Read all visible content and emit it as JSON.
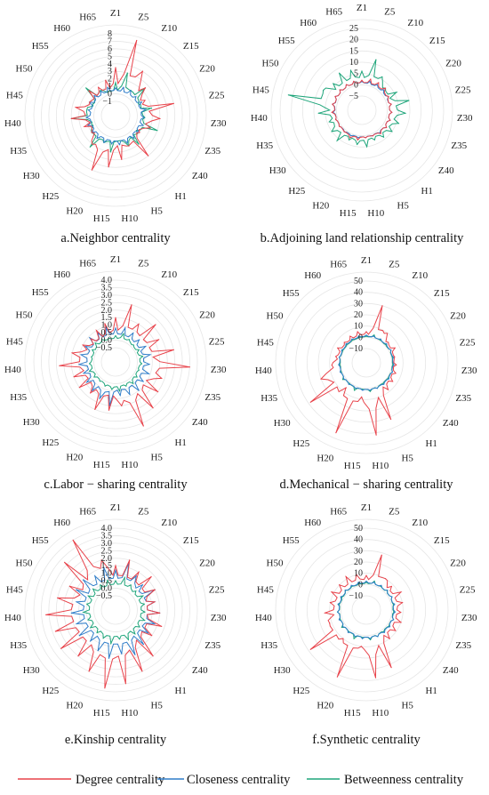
{
  "categories": [
    "Z1",
    "Z5",
    "Z10",
    "Z15",
    "Z20",
    "Z25",
    "Z30",
    "Z35",
    "Z40",
    "H1",
    "H5",
    "H10",
    "H15",
    "H20",
    "H25",
    "H30",
    "H35",
    "H40",
    "H45",
    "H50",
    "H55",
    "H60",
    "H65"
  ],
  "colors": {
    "degree": "#e8424a",
    "closeness": "#2f7dc9",
    "betweenness": "#1ea57a"
  },
  "legend": {
    "degree": "Degree centrality",
    "closeness": "Closeness centrality",
    "betweenness": "Betweenness centrality"
  },
  "chart_data": [
    {
      "type": "radar",
      "caption": "a.Neighbor centrality",
      "rlim": [
        -1,
        8
      ],
      "rticks": [
        -1,
        0,
        1,
        2,
        3,
        4,
        5,
        6,
        7,
        8
      ],
      "series": [
        {
          "name": "Degree centrality",
          "color": "#e8424a",
          "values": [
            3.5,
            7.5,
            4,
            2.5,
            1.5,
            5,
            3,
            2,
            1,
            4,
            1.5,
            3,
            4,
            5,
            2,
            1,
            1.5,
            3,
            2.5,
            1,
            2,
            1.5,
            2
          ]
        },
        {
          "name": "Closeness centrality",
          "color": "#2f7dc9",
          "values": [
            0.8,
            1,
            1,
            0.8,
            1,
            1.2,
            0.9,
            1,
            0.8,
            1,
            1.1,
            1,
            0.9,
            1,
            1,
            0.9,
            1,
            1,
            0.8,
            1,
            1,
            0.9,
            1
          ]
        },
        {
          "name": "Betweenness centrality",
          "color": "#1ea57a",
          "values": [
            1.5,
            3,
            1,
            2.5,
            0.5,
            2,
            1,
            3,
            0.5,
            2,
            1.5,
            0.5,
            2,
            1,
            2.5,
            1,
            0.5,
            3,
            1,
            0.5,
            2.5,
            1,
            0.5
          ]
        }
      ]
    },
    {
      "type": "radar",
      "caption": "b.Adjoining land relationship centrality",
      "rlim": [
        -5,
        25
      ],
      "rticks": [
        -5,
        0,
        5,
        10,
        15,
        20,
        25
      ],
      "series": [
        {
          "name": "Degree centrality",
          "color": "#e8424a",
          "values": [
            2,
            3,
            3,
            3,
            2,
            2,
            2,
            2,
            2,
            2,
            1,
            1,
            2,
            2,
            1,
            1,
            1,
            2,
            2,
            2,
            2,
            2,
            2
          ]
        },
        {
          "name": "Closeness centrality",
          "color": "#2f7dc9",
          "values": [
            1.5,
            2,
            2,
            2,
            2,
            2,
            2,
            2,
            2,
            1.5,
            1,
            1,
            1,
            1,
            1,
            1,
            1,
            1.5,
            2,
            2,
            2,
            2,
            2
          ]
        },
        {
          "name": "Betweenness centrality",
          "color": "#1ea57a",
          "values": [
            6,
            12,
            6,
            3,
            6,
            10,
            8,
            6,
            5,
            4,
            3,
            5,
            4,
            3,
            6,
            5,
            4,
            8,
            22,
            8,
            6,
            8,
            7
          ]
        }
      ]
    },
    {
      "type": "radar",
      "caption": "c.Labor − sharing centrality",
      "rlim": [
        -0.5,
        4.0
      ],
      "rticks": [
        -0.5,
        0.0,
        0.5,
        1.0,
        1.5,
        2.0,
        2.5,
        3.0,
        3.5,
        4.0
      ],
      "series": [
        {
          "name": "Degree centrality",
          "color": "#e8424a",
          "values": [
            1.5,
            2.5,
            1.5,
            2.2,
            1.8,
            2.5,
            3.5,
            1.8,
            2,
            2.5,
            3.2,
            1.5,
            1.8,
            2,
            1.2,
            1.5,
            1.5,
            2.3,
            1.5,
            1,
            0.8,
            1,
            1.2
          ]
        },
        {
          "name": "Closeness centrality",
          "color": "#2f7dc9",
          "values": [
            0.8,
            0.9,
            0.8,
            0.7,
            0.8,
            0.9,
            0.8,
            0.9,
            0.8,
            1,
            0.9,
            0.8,
            1.5,
            1.2,
            1,
            0.9,
            0.8,
            1,
            0.9,
            0.8,
            0.9,
            0.8,
            0.9
          ]
        },
        {
          "name": "Betweenness centrality",
          "color": "#1ea57a",
          "values": [
            0.3,
            0.5,
            0.3,
            0.2,
            0.3,
            0.4,
            0.3,
            0.2,
            0.3,
            0.4,
            0.3,
            0.5,
            0.4,
            0.3,
            0.2,
            0.3,
            0.4,
            0.3,
            0.2,
            0.3,
            0.4,
            0.3,
            0.2
          ]
        }
      ]
    },
    {
      "type": "radar",
      "caption": "d.Mechanical − sharing centrality",
      "rlim": [
        -10,
        50
      ],
      "rticks": [
        -10,
        0,
        10,
        20,
        30,
        40,
        50
      ],
      "series": [
        {
          "name": "Degree centrality",
          "color": "#e8424a",
          "values": [
            5,
            30,
            8,
            4,
            6,
            3,
            4,
            5,
            6,
            8,
            32,
            42,
            8,
            45,
            6,
            38,
            20,
            8,
            5,
            6,
            4,
            5,
            6
          ]
        },
        {
          "name": "Closeness centrality",
          "color": "#2f7dc9",
          "values": [
            2,
            2,
            2,
            2,
            2,
            2,
            2,
            2,
            2,
            2,
            2,
            2,
            2,
            2,
            2,
            2,
            2,
            2,
            2,
            2,
            2,
            2,
            2
          ]
        },
        {
          "name": "Betweenness centrality",
          "color": "#1ea57a",
          "values": [
            1,
            3,
            1,
            1,
            2,
            1,
            1,
            2,
            1,
            1,
            2,
            3,
            1,
            4,
            1,
            3,
            1,
            1,
            2,
            1,
            1,
            1,
            1
          ]
        }
      ]
    },
    {
      "type": "radar",
      "caption": "e.Kinship centrality",
      "rlim": [
        -0.5,
        4.0
      ],
      "rticks": [
        -0.5,
        0.0,
        0.5,
        1.0,
        1.5,
        2.0,
        2.5,
        3.0,
        3.5,
        4.0
      ],
      "series": [
        {
          "name": "Degree centrality",
          "color": "#e8424a",
          "values": [
            1.5,
            2,
            1.5,
            1.8,
            1.5,
            1.2,
            1.5,
            1.8,
            1.5,
            2.5,
            3,
            3.5,
            3.8,
            3,
            2.5,
            3,
            2.8,
            3.2,
            2.5,
            2,
            3.2,
            4,
            2
          ]
        },
        {
          "name": "Closeness centrality",
          "color": "#2f7dc9",
          "values": [
            1.2,
            1.8,
            1.2,
            1,
            1.5,
            1.2,
            1.5,
            1.3,
            1.2,
            1.5,
            1.8,
            1.5,
            1.8,
            1.5,
            1.2,
            1.5,
            1.3,
            1.5,
            1.2,
            1.5,
            1.5,
            1.2,
            1.5
          ]
        },
        {
          "name": "Betweenness centrality",
          "color": "#1ea57a",
          "values": [
            0.5,
            0.8,
            0.5,
            0.4,
            0.6,
            0.5,
            0.5,
            0.6,
            0.5,
            0.6,
            0.7,
            0.5,
            0.8,
            0.6,
            0.5,
            0.6,
            0.5,
            0.7,
            0.5,
            0.6,
            0.6,
            0.5,
            0.6
          ]
        }
      ]
    },
    {
      "type": "radar",
      "caption": "f.Synthetic centrality",
      "rlim": [
        -10,
        50
      ],
      "rticks": [
        -10,
        0,
        10,
        20,
        30,
        40,
        50
      ],
      "series": [
        {
          "name": "Degree centrality",
          "color": "#e8424a",
          "values": [
            8,
            28,
            10,
            8,
            12,
            10,
            8,
            10,
            9,
            10,
            33,
            38,
            10,
            42,
            10,
            38,
            12,
            14,
            10,
            12,
            10,
            12,
            10
          ]
        },
        {
          "name": "Closeness centrality",
          "color": "#2f7dc9",
          "values": [
            3,
            3,
            3,
            3,
            3,
            3,
            3,
            3,
            3,
            3,
            3,
            3,
            3,
            3,
            3,
            3,
            3,
            3,
            3,
            3,
            3,
            3,
            3
          ]
        },
        {
          "name": "Betweenness centrality",
          "color": "#1ea57a",
          "values": [
            2,
            4,
            2,
            3,
            3,
            2,
            2,
            3,
            2,
            2,
            3,
            4,
            2,
            5,
            2,
            4,
            2,
            3,
            2,
            2,
            3,
            2,
            2
          ]
        }
      ]
    }
  ]
}
